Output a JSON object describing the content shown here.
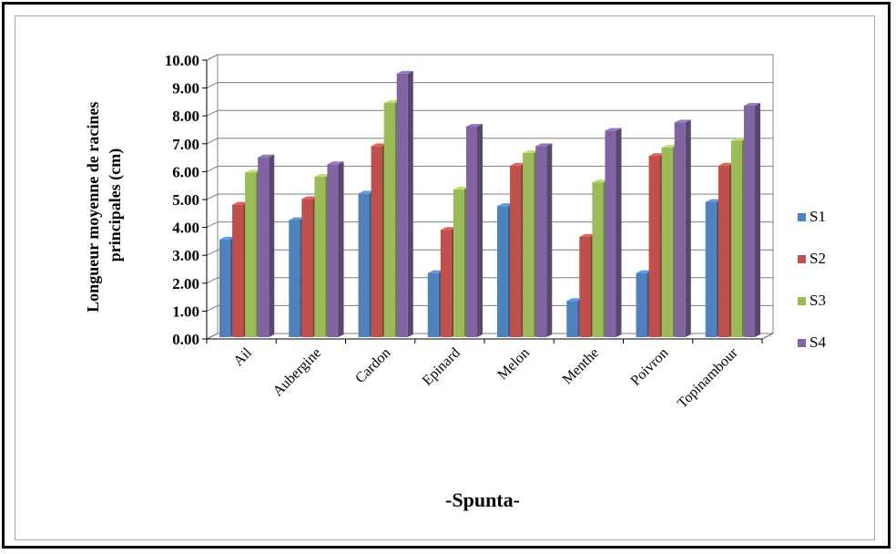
{
  "chart_data": {
    "type": "bar",
    "style": "3d-clustered-column",
    "title": "",
    "xlabel": "-Spunta-",
    "ylabel": "Longueur moyenne de racines principales (cm)",
    "ylabel_lines": [
      "Longueur moyenne de racines",
      "principales (cm)"
    ],
    "ylim": [
      0,
      10
    ],
    "ytick_step": 1,
    "yticks": [
      "0.00",
      "1.00",
      "2.00",
      "3.00",
      "4.00",
      "5.00",
      "6.00",
      "7.00",
      "8.00",
      "9.00",
      "10.00"
    ],
    "grid": true,
    "legend_position": "right",
    "categories": [
      "Ail",
      "Aubergine",
      "Cardon",
      "Epinard",
      "Melon",
      "Menthe",
      "Poivron",
      "Topinambour"
    ],
    "series": [
      {
        "name": "S1",
        "color": "#4f81bd",
        "values": [
          3.5,
          4.2,
          5.15,
          2.3,
          4.7,
          1.3,
          2.3,
          4.85
        ]
      },
      {
        "name": "S2",
        "color": "#c0504d",
        "values": [
          4.75,
          4.95,
          6.85,
          3.85,
          6.15,
          3.6,
          6.5,
          6.15
        ]
      },
      {
        "name": "S3",
        "color": "#9bbb59",
        "values": [
          5.9,
          5.75,
          8.4,
          5.3,
          6.6,
          5.55,
          6.8,
          7.05
        ]
      },
      {
        "name": "S4",
        "color": "#8064a2",
        "values": [
          6.45,
          6.2,
          9.45,
          7.55,
          6.85,
          7.4,
          7.7,
          8.3
        ]
      }
    ]
  }
}
